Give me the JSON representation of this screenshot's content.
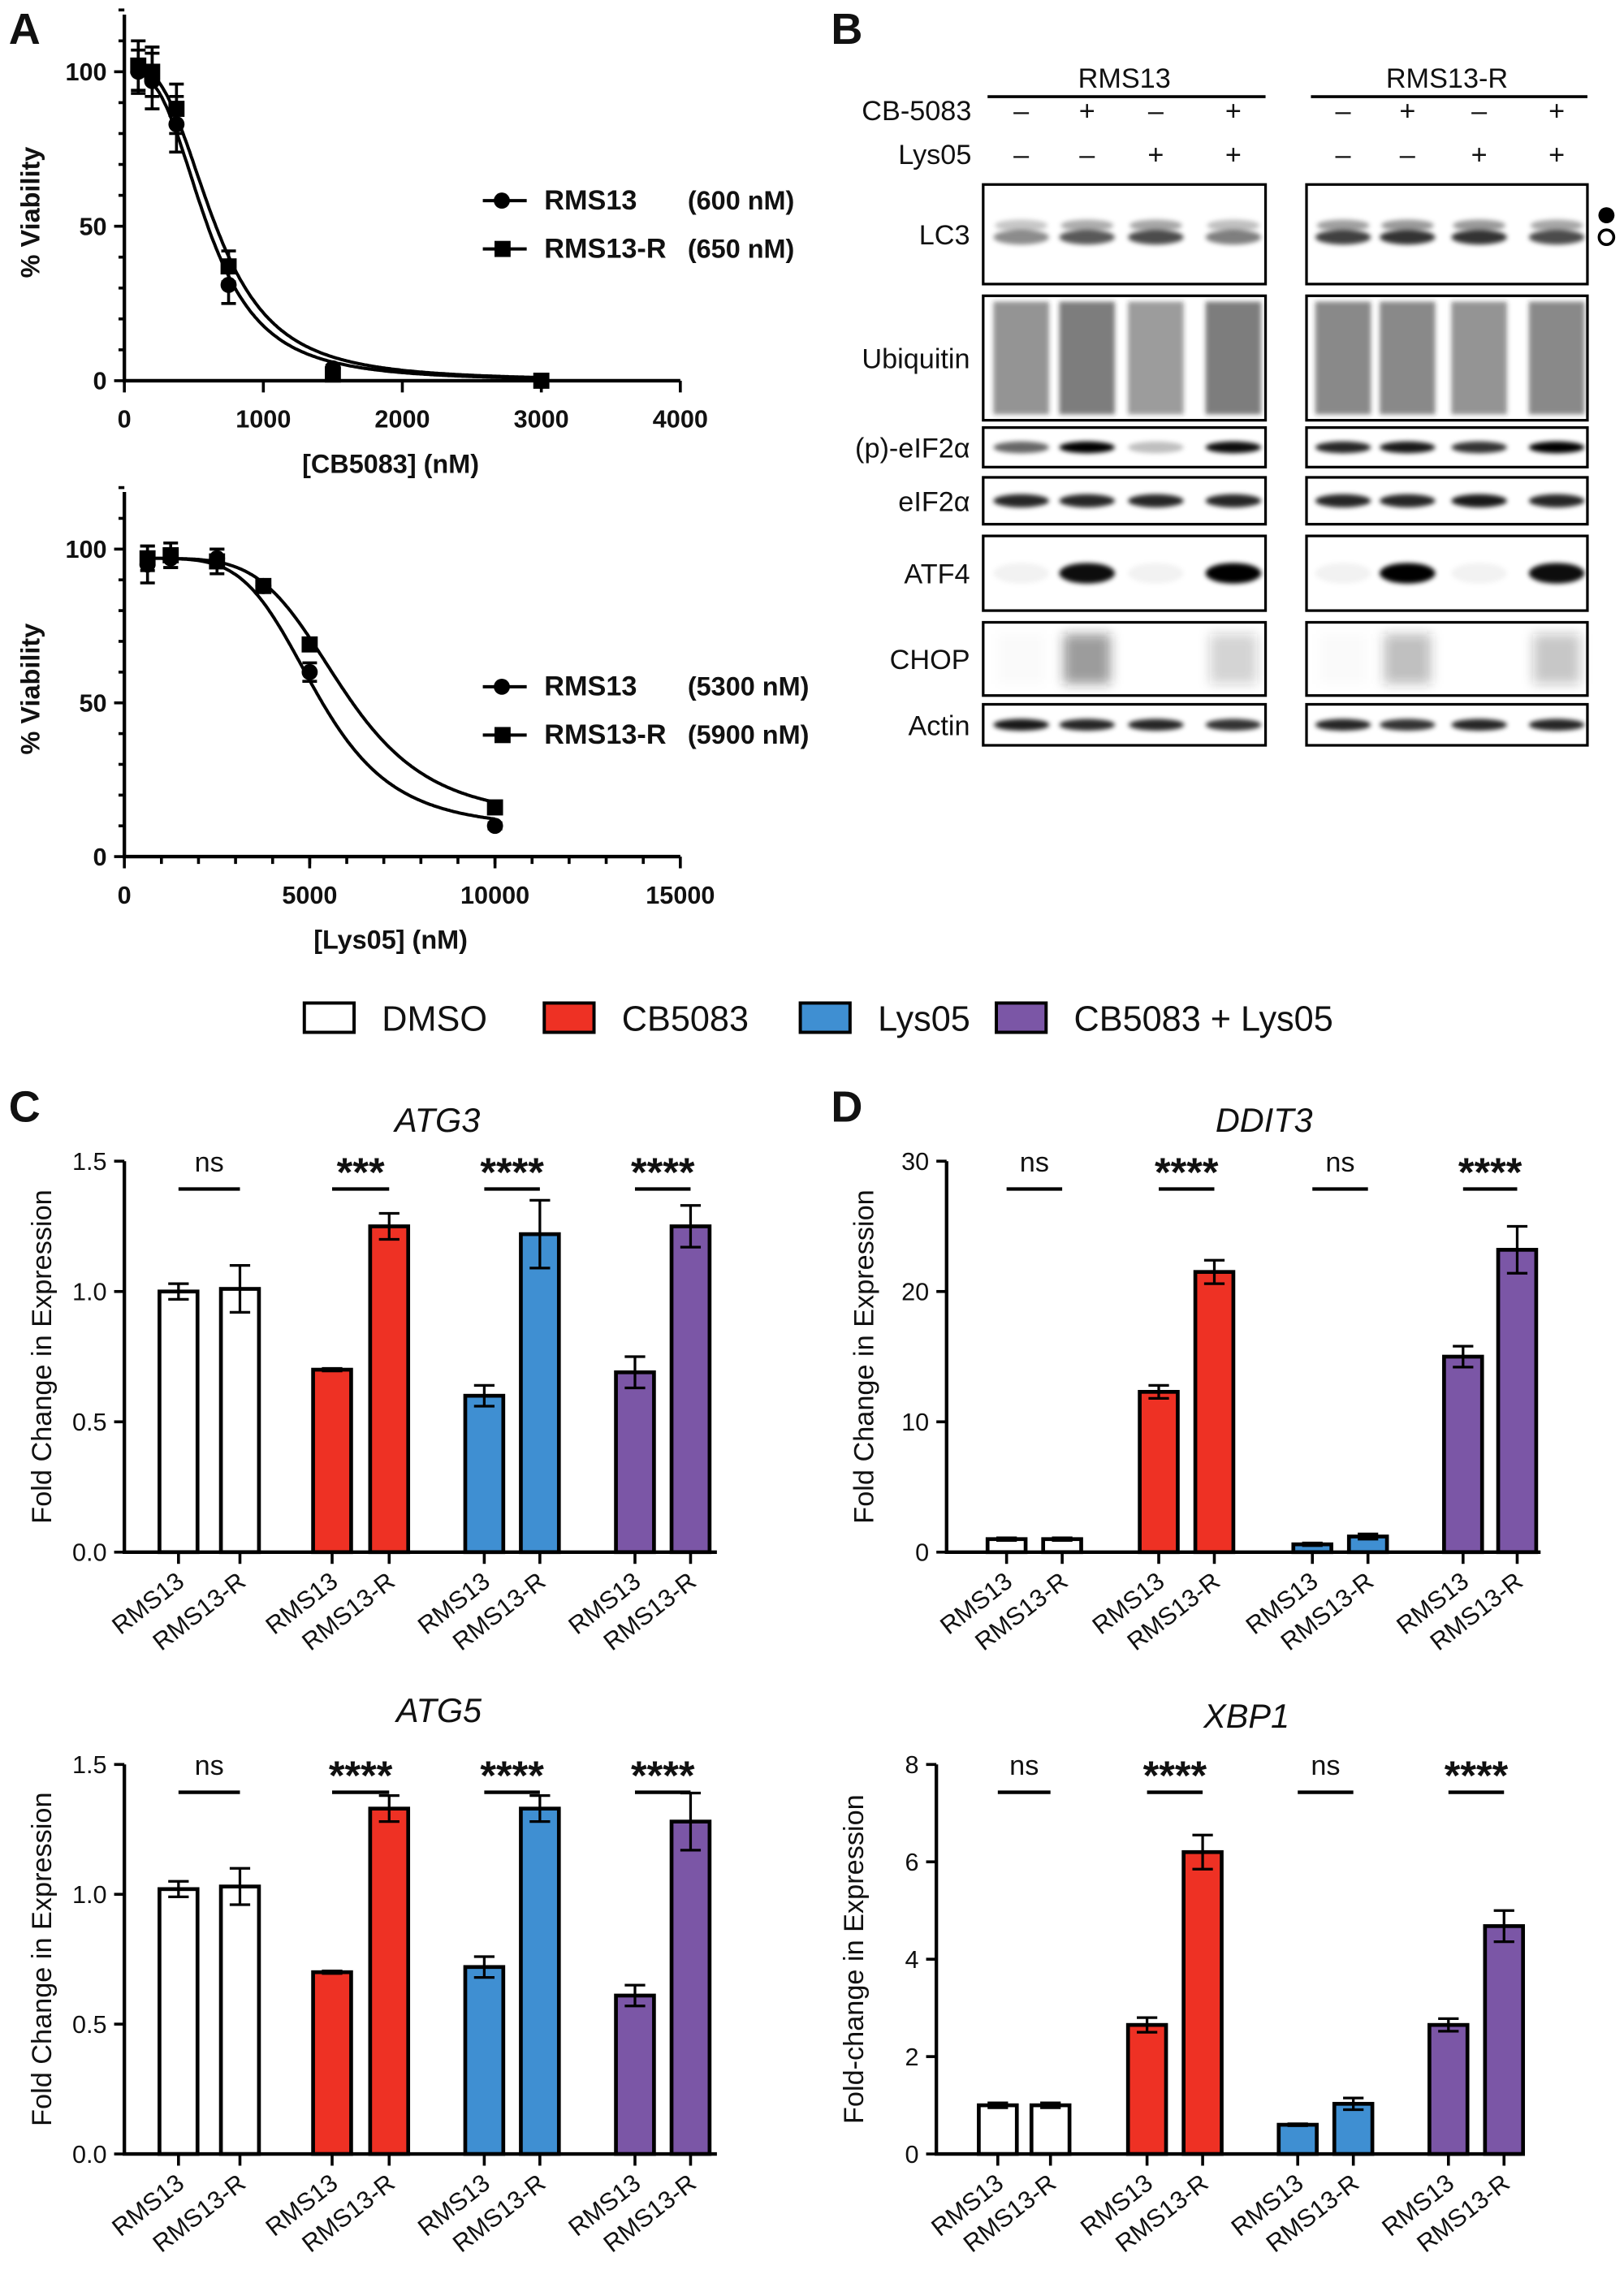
{
  "panels": {
    "a": "A",
    "b": "B",
    "c": "C",
    "d": "D"
  },
  "legend": {
    "items": [
      {
        "label": "DMSO",
        "color": "#ffffff"
      },
      {
        "label": "CB5083",
        "color": "#ee3124"
      },
      {
        "label": "Lys05",
        "color": "#3f8fd2"
      },
      {
        "label": "CB5083 + Lys05",
        "color": "#7b56a6"
      }
    ]
  },
  "western_blot": {
    "groups": [
      "RMS13",
      "RMS13-R"
    ],
    "treatments": [
      {
        "label": "CB-5083",
        "signs": [
          "–",
          "+",
          "–",
          "+",
          "–",
          "+",
          "–",
          "+"
        ]
      },
      {
        "label": "Lys05",
        "signs": [
          "–",
          "–",
          "+",
          "+",
          "–",
          "–",
          "+",
          "+"
        ]
      }
    ],
    "rows": [
      "LC3",
      "Ubiquitin",
      "(p)-eIF2α",
      "eIF2α",
      "ATF4",
      "CHOP",
      "Actin"
    ],
    "markers": [
      "filled-circle",
      "open-circle"
    ]
  },
  "chart_data": [
    {
      "type": "line",
      "panel": "A",
      "xlabel": "[CB5083] (nM)",
      "ylabel": "% Viability",
      "xlim": [
        0,
        4000
      ],
      "ylim": [
        0,
        120
      ],
      "xticks": [
        0,
        1000,
        2000,
        3000,
        4000
      ],
      "yticks": [
        0,
        50,
        100
      ],
      "legend_position": "right",
      "series": [
        {
          "name": "RMS13",
          "ic50_label": "(600 nM)",
          "marker": "circle",
          "x": [
            100,
            200,
            375,
            750,
            1500,
            3000
          ],
          "y": [
            100,
            97,
            83,
            31,
            4,
            0
          ],
          "err": [
            7,
            9,
            9,
            6,
            1,
            0
          ]
        },
        {
          "name": "RMS13-R",
          "ic50_label": "(650 nM)",
          "marker": "square",
          "x": [
            100,
            200,
            375,
            750,
            1500,
            3000
          ],
          "y": [
            102,
            100,
            88,
            37,
            2,
            0
          ],
          "err": [
            8,
            8,
            8,
            5,
            1,
            0
          ]
        }
      ]
    },
    {
      "type": "line",
      "panel": "A",
      "xlabel": "[Lys05] (nM)",
      "ylabel": "% Viability",
      "xlim": [
        0,
        15000
      ],
      "ylim": [
        0,
        120
      ],
      "xticks": [
        0,
        5000,
        10000,
        15000
      ],
      "yticks": [
        0,
        50,
        100
      ],
      "legend_position": "right",
      "series": [
        {
          "name": "RMS13",
          "ic50_label": "(5300 nM)",
          "marker": "circle",
          "x": [
            625,
            1250,
            2500,
            3750,
            5000,
            10000
          ],
          "y": [
            95,
            97,
            97,
            88,
            60,
            10
          ],
          "err": [
            6,
            3,
            3,
            2,
            3,
            1
          ]
        },
        {
          "name": "RMS13-R",
          "ic50_label": "(5900 nM)",
          "marker": "square",
          "x": [
            625,
            1250,
            2500,
            3750,
            5000,
            10000
          ],
          "y": [
            97,
            98,
            96,
            88,
            69,
            16
          ],
          "err": [
            4,
            4,
            4,
            2,
            2,
            1
          ]
        }
      ]
    },
    {
      "type": "bar",
      "panel": "C",
      "title": "ATG3",
      "ylabel": "Fold Change in Expression",
      "ylim": [
        0,
        1.5
      ],
      "yticks": [
        "0.0",
        "0.5",
        "1.0",
        "1.5"
      ],
      "categories": [
        "RMS13",
        "RMS13-R",
        "RMS13",
        "RMS13-R",
        "RMS13",
        "RMS13-R",
        "RMS13",
        "RMS13-R"
      ],
      "values": [
        1.0,
        1.01,
        0.7,
        1.25,
        0.6,
        1.22,
        0.69,
        1.25
      ],
      "errors": [
        0.03,
        0.09,
        0.005,
        0.05,
        0.04,
        0.13,
        0.06,
        0.08
      ],
      "significance": [
        "ns",
        "***",
        "****",
        "****"
      ]
    },
    {
      "type": "bar",
      "panel": "C",
      "title": "ATG5",
      "ylabel": "Fold Change in Expression",
      "ylim": [
        0,
        1.5
      ],
      "yticks": [
        "0.0",
        "0.5",
        "1.0",
        "1.5"
      ],
      "categories": [
        "RMS13",
        "RMS13-R",
        "RMS13",
        "RMS13-R",
        "RMS13",
        "RMS13-R",
        "RMS13",
        "RMS13-R"
      ],
      "values": [
        1.02,
        1.03,
        0.7,
        1.33,
        0.72,
        1.33,
        0.61,
        1.28
      ],
      "errors": [
        0.03,
        0.07,
        0.005,
        0.05,
        0.04,
        0.05,
        0.04,
        0.11
      ],
      "significance": [
        "ns",
        "****",
        "****",
        "****"
      ]
    },
    {
      "type": "bar",
      "panel": "D",
      "title": "DDIT3",
      "ylabel": "Fold Change in Expression",
      "ylim": [
        0,
        30
      ],
      "yticks": [
        "0",
        "10",
        "20",
        "30"
      ],
      "categories": [
        "RMS13",
        "RMS13-R",
        "RMS13",
        "RMS13-R",
        "RMS13",
        "RMS13-R",
        "RMS13",
        "RMS13-R"
      ],
      "values": [
        1.0,
        1.0,
        12.3,
        21.5,
        0.6,
        1.2,
        15.0,
        23.2
      ],
      "errors": [
        0.1,
        0.1,
        0.5,
        0.9,
        0.1,
        0.2,
        0.8,
        1.8
      ],
      "significance": [
        "ns",
        "****",
        "ns",
        "****"
      ]
    },
    {
      "type": "bar",
      "panel": "D",
      "title": "XBP1",
      "ylabel": "Fold-change in Expression",
      "ylim": [
        0,
        8
      ],
      "yticks": [
        "0",
        "2",
        "4",
        "6",
        "8"
      ],
      "categories": [
        "RMS13",
        "RMS13-R",
        "RMS13",
        "RMS13-R",
        "RMS13",
        "RMS13-R",
        "RMS13",
        "RMS13-R"
      ],
      "values": [
        1.0,
        1.0,
        2.65,
        6.2,
        0.6,
        1.03,
        2.65,
        4.68
      ],
      "errors": [
        0.05,
        0.05,
        0.15,
        0.35,
        0.02,
        0.12,
        0.13,
        0.32
      ],
      "significance": [
        "ns",
        "****",
        "ns",
        "****"
      ]
    }
  ]
}
